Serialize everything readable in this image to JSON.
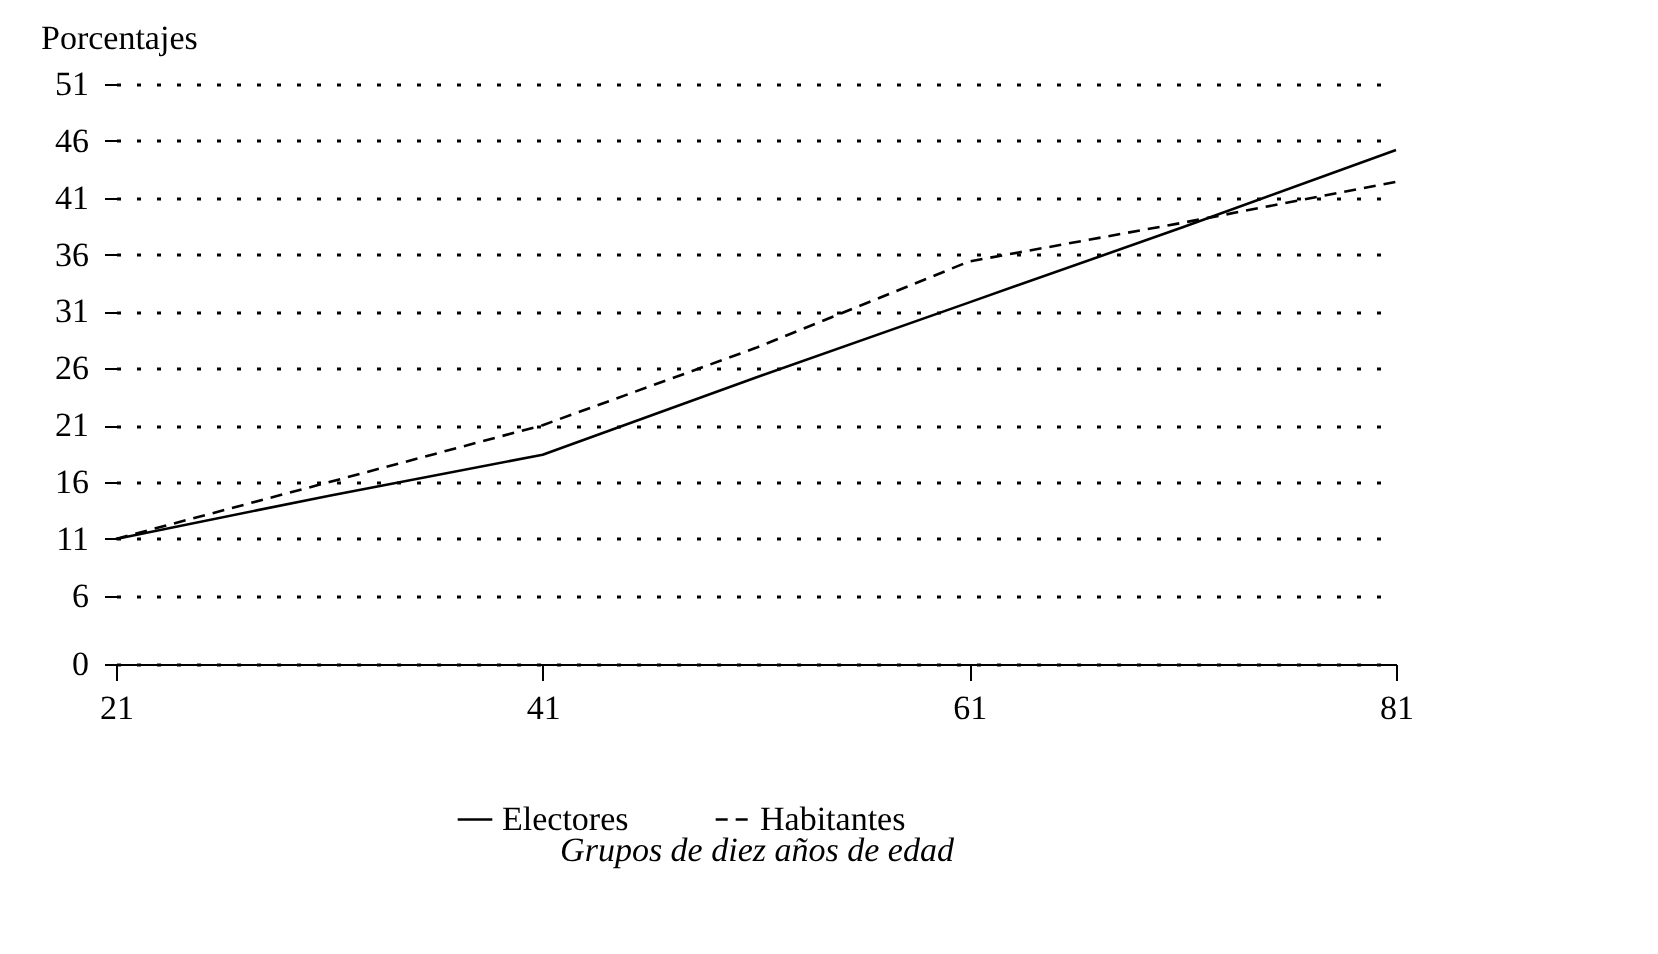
{
  "chart_data": {
    "type": "line",
    "xlabel": "Grupos de diez años de edad",
    "ylabel": "Porcentajes",
    "x": [
      21,
      31,
      41,
      51,
      61,
      71,
      81
    ],
    "series": [
      {
        "name": "Electores",
        "color": "#000000",
        "line_style": "solid",
        "values": [
          11,
          14.8,
          18.4,
          25.2,
          31.8,
          38.4,
          45.2
        ]
      },
      {
        "name": "Habitantes",
        "color": "#000000",
        "line_style": "dashed",
        "values": [
          11,
          16,
          21,
          27.8,
          35.4,
          38.8,
          42.4
        ]
      }
    ],
    "xlim": [
      21,
      81
    ],
    "xticks": [
      21,
      41,
      61,
      81
    ],
    "ylim": [
      0,
      51
    ],
    "yticks": [
      0,
      6,
      11,
      16,
      21,
      26,
      31,
      36,
      41,
      46,
      51
    ],
    "grid": "y",
    "legend": "bottom",
    "marker": "none"
  }
}
